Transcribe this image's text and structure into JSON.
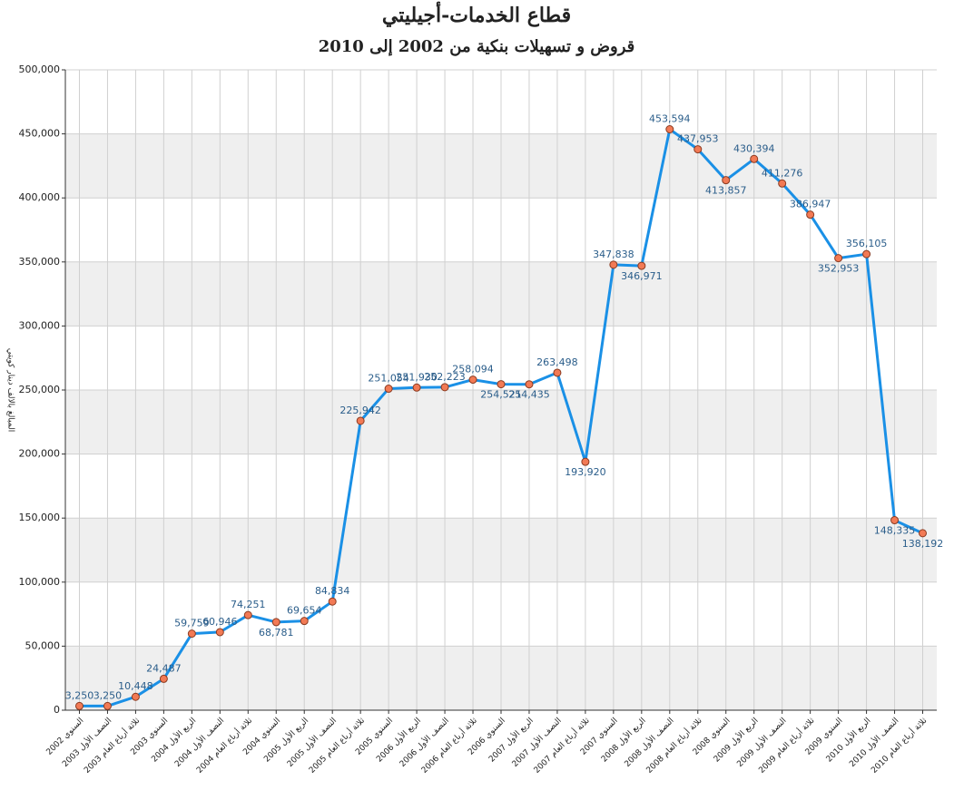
{
  "chart_data": {
    "type": "line",
    "title": "قطاع الخدمات-أجيليتي",
    "subtitle": "قروض و تسهيلات بنكية من 2002 إلى 2010",
    "y_label": "المبالغ بالالف دينار كويتي",
    "categories": [
      "السنوي 2002",
      "النصف الأول 2003",
      "ثلاثة أرباع العام 2003",
      "السنوي 2003",
      "الربع الأول 2004",
      "النصف الأول 2004",
      "ثلاثة أرباع العام 2004",
      "السنوي 2004",
      "الربع الأول 2005",
      "النصف الأول 2005",
      "ثلاثة أرباع العام 2005",
      "السنوي 2005",
      "الربع الأول 2006",
      "النصف الأول 2006",
      "ثلاثة أرباع العام 2006",
      "السنوي 2006",
      "الربع الأول 2007",
      "النصف الأول 2007",
      "ثلاثة أرباع العام 2007",
      "السنوي 2007",
      "الربع الأول 2008",
      "النصف الأول 2008",
      "ثلاثة أرباع العام 2008",
      "السنوي 2008",
      "الربع الأول 2009",
      "النصف الأول 2009",
      "ثلاثة أرباع العام 2009",
      "السنوي 2009",
      "الربع الأول 2010",
      "النصف الأول 2010",
      "ثلاثة أرباع العام 2010"
    ],
    "values": [
      3250,
      3250,
      10448,
      24487,
      59759,
      60946,
      74251,
      68781,
      69654,
      84834,
      225942,
      251054,
      251930,
      252223,
      258094,
      254521,
      254435,
      263498,
      193920,
      347838,
      346971,
      453594,
      437953,
      413857,
      430394,
      411276,
      386947,
      352953,
      356105,
      148335,
      138192
    ],
    "value_labels": [
      "3,250",
      "3,250",
      "10,448",
      "24,487",
      "59,759",
      "60,946",
      "74,251",
      "68,781",
      "69,654",
      "84,834",
      "225,942",
      "251,054",
      "251,930",
      "252,223",
      "258,094",
      "254,521",
      "254,435",
      "263,498",
      "193,920",
      "347,838",
      "346,971",
      "453,594",
      "437,953",
      "413,857",
      "430,394",
      "411,276",
      "386,947",
      "352,953",
      "356,105",
      "148,335",
      "138,192"
    ],
    "color": "#1a90e6",
    "marker_color": "#f27a55",
    "ylim": [
      0,
      500000
    ],
    "yticks": [
      0,
      {
        "value": 50000,
        "label": "50,000"
      },
      {
        "value": 100000,
        "label": "100,000"
      },
      {
        "value": 150000,
        "label": "150,000"
      },
      {
        "value": 200000,
        "label": "200,000"
      },
      {
        "value": 250000,
        "label": "250,000"
      },
      {
        "value": 300000,
        "label": "300,000"
      },
      {
        "value": 350000,
        "label": "350,000"
      },
      {
        "value": 400000,
        "label": "400,000"
      },
      {
        "value": 450000,
        "label": "450,000"
      },
      {
        "value": 500000,
        "label": "500,000"
      }
    ],
    "grid": true
  }
}
